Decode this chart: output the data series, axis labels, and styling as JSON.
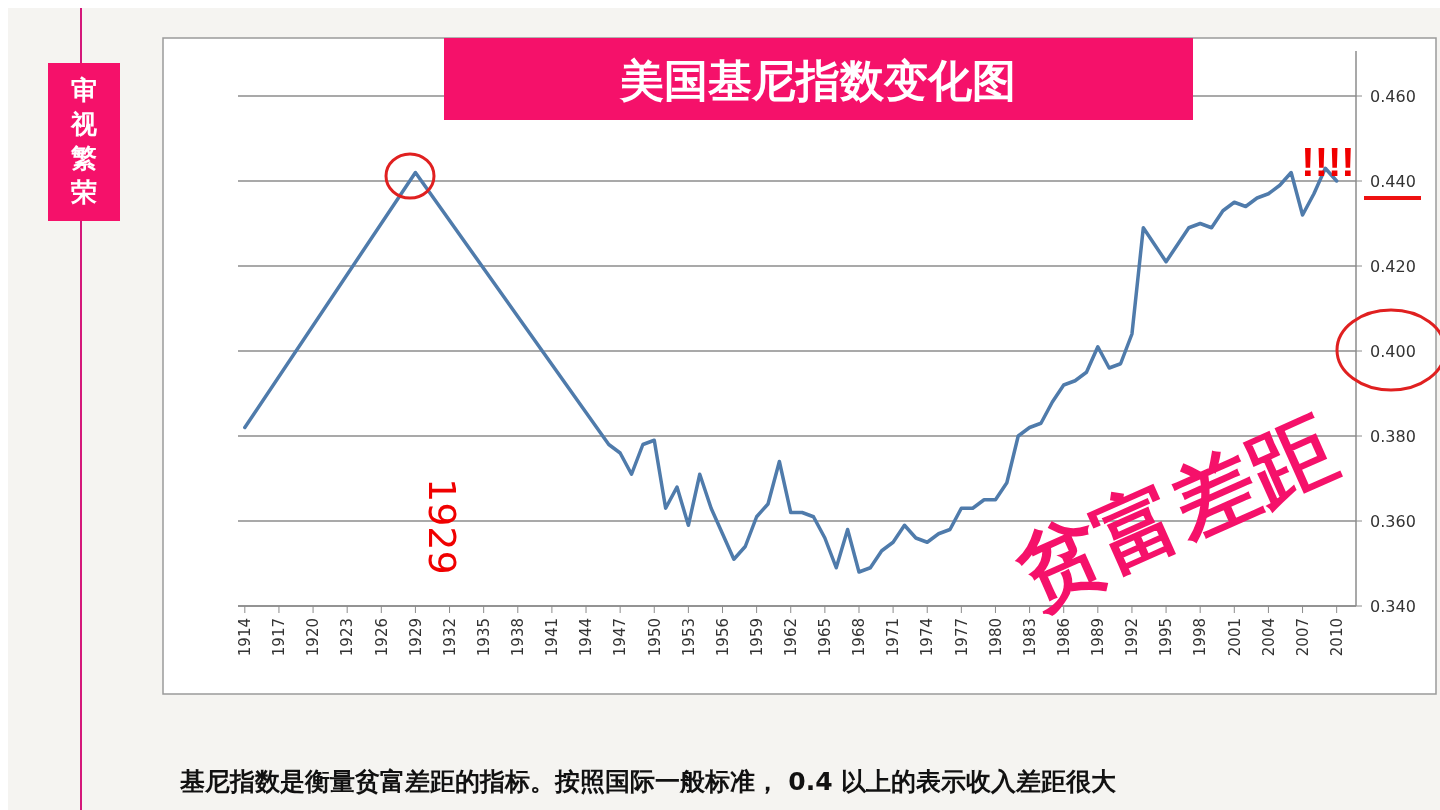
{
  "chart_data": {
    "type": "line",
    "title": "美国基尼指数变化图",
    "x": [
      1914,
      1929,
      1946,
      1947,
      1948,
      1949,
      1950,
      1951,
      1952,
      1953,
      1954,
      1955,
      1956,
      1957,
      1958,
      1959,
      1960,
      1961,
      1962,
      1963,
      1964,
      1965,
      1966,
      1967,
      1968,
      1969,
      1970,
      1971,
      1972,
      1973,
      1974,
      1975,
      1976,
      1977,
      1978,
      1979,
      1980,
      1981,
      1982,
      1983,
      1984,
      1985,
      1986,
      1987,
      1988,
      1989,
      1990,
      1991,
      1992,
      1993,
      1994,
      1995,
      1996,
      1997,
      1998,
      1999,
      2000,
      2001,
      2002,
      2003,
      2004,
      2005,
      2006,
      2007,
      2008,
      2009,
      2010
    ],
    "series": [
      {
        "color": "#4f7bab",
        "values": [
          0.382,
          0.442,
          0.378,
          0.376,
          0.371,
          0.378,
          0.379,
          0.363,
          0.368,
          0.359,
          0.371,
          0.363,
          0.357,
          0.351,
          0.354,
          0.361,
          0.364,
          0.374,
          0.362,
          0.362,
          0.361,
          0.356,
          0.349,
          0.358,
          0.348,
          0.349,
          0.353,
          0.355,
          0.359,
          0.356,
          0.355,
          0.357,
          0.358,
          0.363,
          0.363,
          0.365,
          0.365,
          0.369,
          0.38,
          0.382,
          0.383,
          0.388,
          0.392,
          0.393,
          0.395,
          0.401,
          0.396,
          0.397,
          0.404,
          0.429,
          0.425,
          0.421,
          0.425,
          0.429,
          0.43,
          0.429,
          0.433,
          0.435,
          0.434,
          0.436,
          0.437,
          0.439,
          0.442,
          0.432,
          0.437,
          0.443,
          0.44
        ]
      }
    ],
    "xlim": [
      1913.4,
      2011.7
    ],
    "xticks": [
      1914,
      1917,
      1920,
      1923,
      1926,
      1929,
      1932,
      1935,
      1938,
      1941,
      1944,
      1947,
      1950,
      1953,
      1956,
      1959,
      1962,
      1965,
      1968,
      1971,
      1974,
      1977,
      1980,
      1983,
      1986,
      1989,
      1992,
      1995,
      1998,
      2001,
      2004,
      2007,
      2010
    ],
    "ylim": [
      0.34,
      0.46
    ],
    "yticks": [
      {
        "value": 0.34,
        "label": "0.340"
      },
      {
        "value": 0.36,
        "label": "0.360"
      },
      {
        "value": 0.38,
        "label": "0.380"
      },
      {
        "value": 0.4,
        "label": "0.400"
      },
      {
        "value": 0.42,
        "label": "0.420"
      },
      {
        "value": 0.44,
        "label": "0.440"
      },
      {
        "value": 0.46,
        "label": "0.460"
      }
    ],
    "grid": "y",
    "marker": "none",
    "line_style": "solid",
    "annotations": [
      "审视繁荣",
      "1929",
      "!!!!",
      "贫富差距",
      "基尼指数是衡量贫富差距的指标。按照国际一般标准， 0.4 以上的表示收入差距很大"
    ]
  }
}
